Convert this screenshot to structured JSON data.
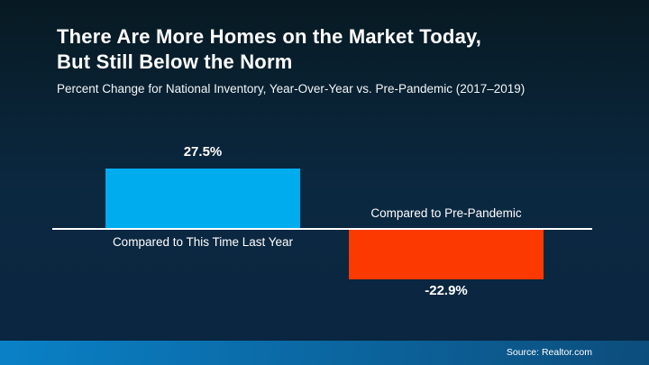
{
  "header": {
    "title_lines": [
      "There Are More Homes on the Market Today,",
      "But Still Below the Norm"
    ],
    "subtitle": "Percent Change for National Inventory, Year-Over-Year vs. Pre-Pandemic (2017–2019)"
  },
  "chart_data": {
    "type": "bar",
    "title": "There Are More Homes on the Market Today, But Still Below the Norm",
    "subtitle": "Percent Change for National Inventory, Year-Over-Year vs. Pre-Pandemic (2017–2019)",
    "categories": [
      "Compared to This Time Last Year",
      "Compared to Pre-Pandemic"
    ],
    "values": [
      27.5,
      -22.9
    ],
    "value_labels": [
      "27.5%",
      "-22.9%"
    ],
    "series_colors": [
      "#00ACEE",
      "#FC3A00"
    ],
    "baseline": 0,
    "ylim": [
      -30,
      35
    ],
    "xlabel": "",
    "ylabel": "",
    "grid": false,
    "legend": false,
    "axis_line_color": "#FFFFFF"
  },
  "footer": {
    "source": "Source: Realtor.com",
    "bar_color_left": "#0A81C7",
    "bar_color_right": "#0C4D7C"
  },
  "colors": {
    "background_top": "#071A23",
    "background_mid": "#0B2841",
    "background_bottom": "#0A2540",
    "positive_bar": "#00ACEE",
    "negative_bar": "#FC3A00",
    "text": "#FFFFFF"
  }
}
